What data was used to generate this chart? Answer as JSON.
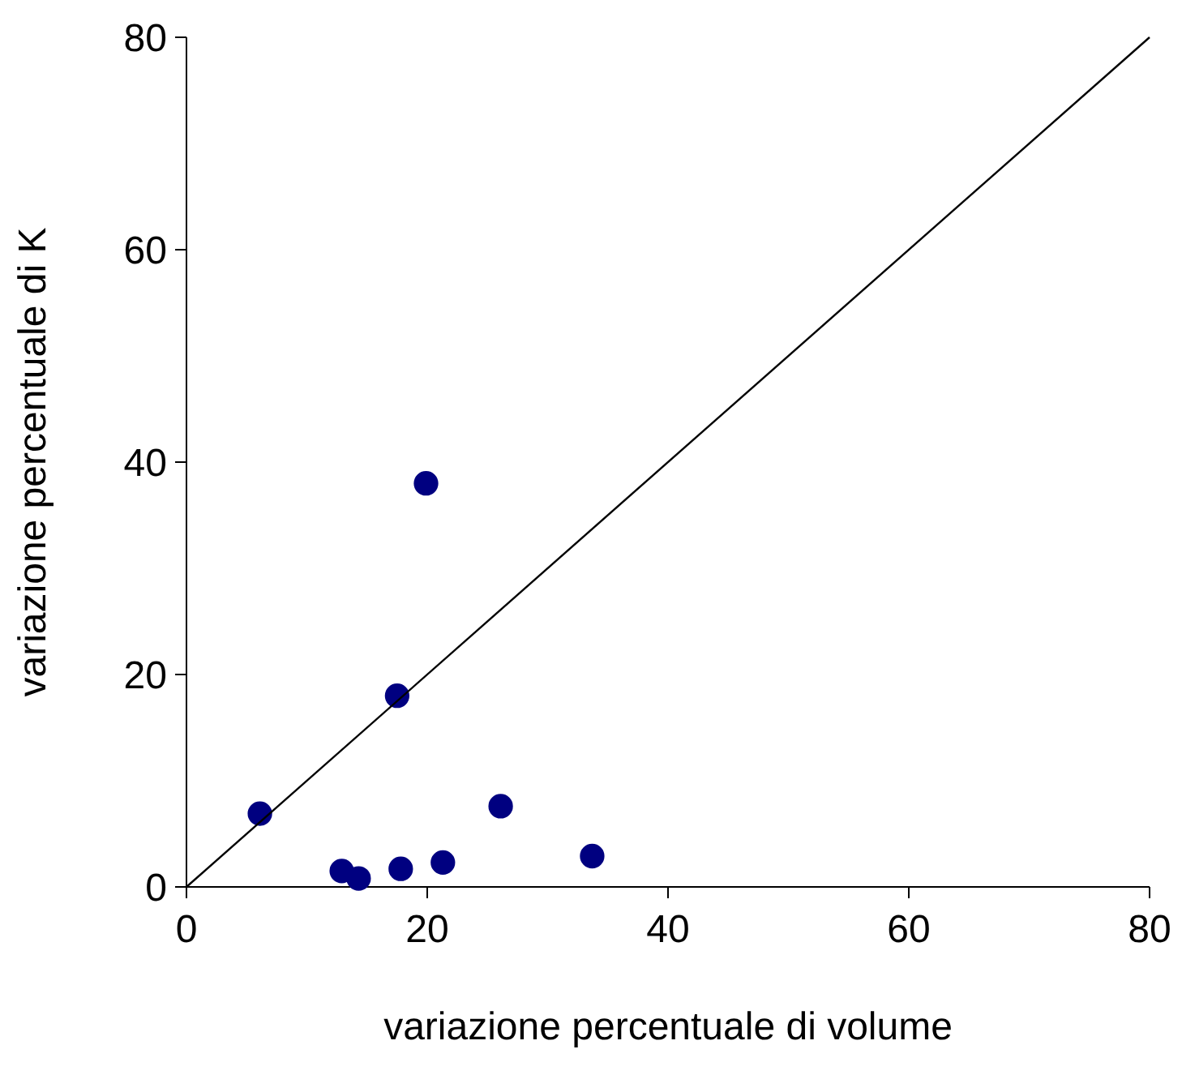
{
  "chart_data": {
    "type": "scatter",
    "xlabel": "variazione percentuale di volume",
    "ylabel": "variazione percentuale di K",
    "xlim": [
      0,
      80
    ],
    "ylim": [
      0,
      80
    ],
    "xticks": [
      0,
      20,
      40,
      60,
      80
    ],
    "yticks": [
      0,
      20,
      40,
      60,
      80
    ],
    "grid": false,
    "series": [
      {
        "color": "#000080",
        "marker": "circle",
        "x": [
          6.1,
          12.9,
          14.3,
          17.5,
          17.8,
          19.9,
          21.3,
          26.1,
          33.7
        ],
        "values": [
          6.9,
          1.5,
          0.8,
          18,
          1.7,
          38,
          2.3,
          7.6,
          2.9
        ]
      },
      {
        "type": "line",
        "color": "#000000",
        "marker": "none",
        "x": [
          0,
          80
        ],
        "values": [
          0,
          80
        ]
      }
    ]
  }
}
